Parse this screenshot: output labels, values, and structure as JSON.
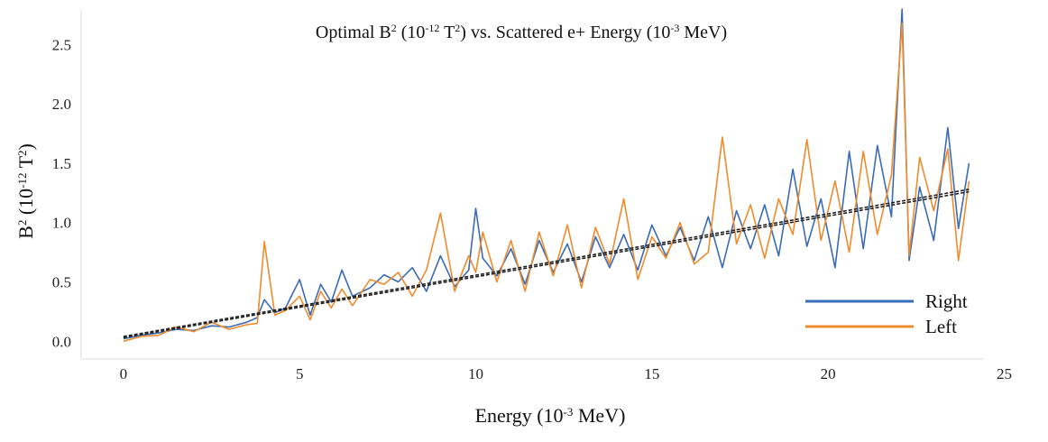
{
  "chart_data": {
    "type": "line",
    "title": {
      "main": "Optimal B",
      "sup1": "2",
      "p1": " (10",
      "sup2": "-12",
      "p2": " T",
      "sup3": "2",
      "p3": ") vs. Scattered e+ Energy (10",
      "sup4": "-3",
      "p4": " MeV)"
    },
    "xlabel": {
      "p1": "Energy (10",
      "sup": "-3",
      "p2": " MeV)"
    },
    "ylabel": {
      "p1": "B",
      "sup1": "2",
      "p2": " (10",
      "sup2": "-12",
      "p3": " T",
      "sup3": "2",
      "p4": ")"
    },
    "xlim": [
      -1.2,
      24.4
    ],
    "ylim": [
      -0.15,
      2.8
    ],
    "xticks": [
      0,
      5,
      10,
      15,
      20,
      25
    ],
    "yticks": [
      0.0,
      0.5,
      1.0,
      1.5,
      2.0,
      2.5
    ],
    "xtick_labels": [
      "0",
      "5",
      "10",
      "15",
      "20",
      "25"
    ],
    "ytick_labels": [
      "0.0",
      "0.5",
      "1.0",
      "1.5",
      "2.0",
      "2.5"
    ],
    "grid": false,
    "legend_position": "lower-right",
    "x": [
      0.0,
      0.5,
      1.0,
      1.5,
      2.0,
      2.5,
      3.0,
      3.5,
      3.8,
      4.0,
      4.3,
      4.6,
      5.0,
      5.3,
      5.6,
      5.9,
      6.2,
      6.5,
      7.0,
      7.4,
      7.8,
      8.2,
      8.6,
      9.0,
      9.4,
      9.8,
      10.0,
      10.2,
      10.6,
      11.0,
      11.4,
      11.8,
      12.2,
      12.6,
      13.0,
      13.4,
      13.8,
      14.2,
      14.6,
      15.0,
      15.4,
      15.8,
      16.2,
      16.6,
      17.0,
      17.4,
      17.8,
      18.2,
      18.6,
      19.0,
      19.4,
      19.8,
      20.2,
      20.6,
      21.0,
      21.4,
      21.8,
      22.1,
      22.3,
      22.6,
      23.0,
      23.4,
      23.7,
      24.0
    ],
    "series": [
      {
        "name": "Right",
        "color": "#3a6bb5",
        "values": [
          0.02,
          0.05,
          0.07,
          0.1,
          0.09,
          0.13,
          0.12,
          0.16,
          0.2,
          0.35,
          0.24,
          0.28,
          0.52,
          0.22,
          0.48,
          0.33,
          0.6,
          0.38,
          0.45,
          0.56,
          0.5,
          0.62,
          0.42,
          0.72,
          0.46,
          0.6,
          1.12,
          0.7,
          0.55,
          0.78,
          0.48,
          0.85,
          0.58,
          0.82,
          0.5,
          0.88,
          0.62,
          0.9,
          0.6,
          0.98,
          0.72,
          0.96,
          0.68,
          1.05,
          0.62,
          1.1,
          0.78,
          1.15,
          0.72,
          1.45,
          0.8,
          1.2,
          0.62,
          1.6,
          0.78,
          1.65,
          1.05,
          2.8,
          0.68,
          1.3,
          0.85,
          1.8,
          0.95,
          1.5
        ],
        "trend": [
          0.03,
          1.26
        ]
      },
      {
        "name": "Left",
        "color": "#f08b2c",
        "values": [
          0.0,
          0.04,
          0.05,
          0.12,
          0.08,
          0.16,
          0.1,
          0.14,
          0.15,
          0.84,
          0.22,
          0.26,
          0.38,
          0.18,
          0.42,
          0.28,
          0.44,
          0.3,
          0.52,
          0.48,
          0.58,
          0.38,
          0.6,
          1.08,
          0.42,
          0.72,
          0.58,
          0.92,
          0.5,
          0.85,
          0.42,
          0.92,
          0.55,
          0.98,
          0.45,
          0.96,
          0.65,
          1.2,
          0.52,
          0.88,
          0.7,
          1.0,
          0.65,
          0.75,
          1.72,
          0.82,
          1.15,
          0.7,
          1.2,
          0.9,
          1.7,
          0.85,
          1.35,
          0.75,
          1.6,
          0.9,
          1.4,
          2.68,
          0.72,
          1.55,
          1.1,
          1.62,
          0.68,
          1.35
        ],
        "trend": [
          0.04,
          1.28
        ]
      }
    ]
  }
}
